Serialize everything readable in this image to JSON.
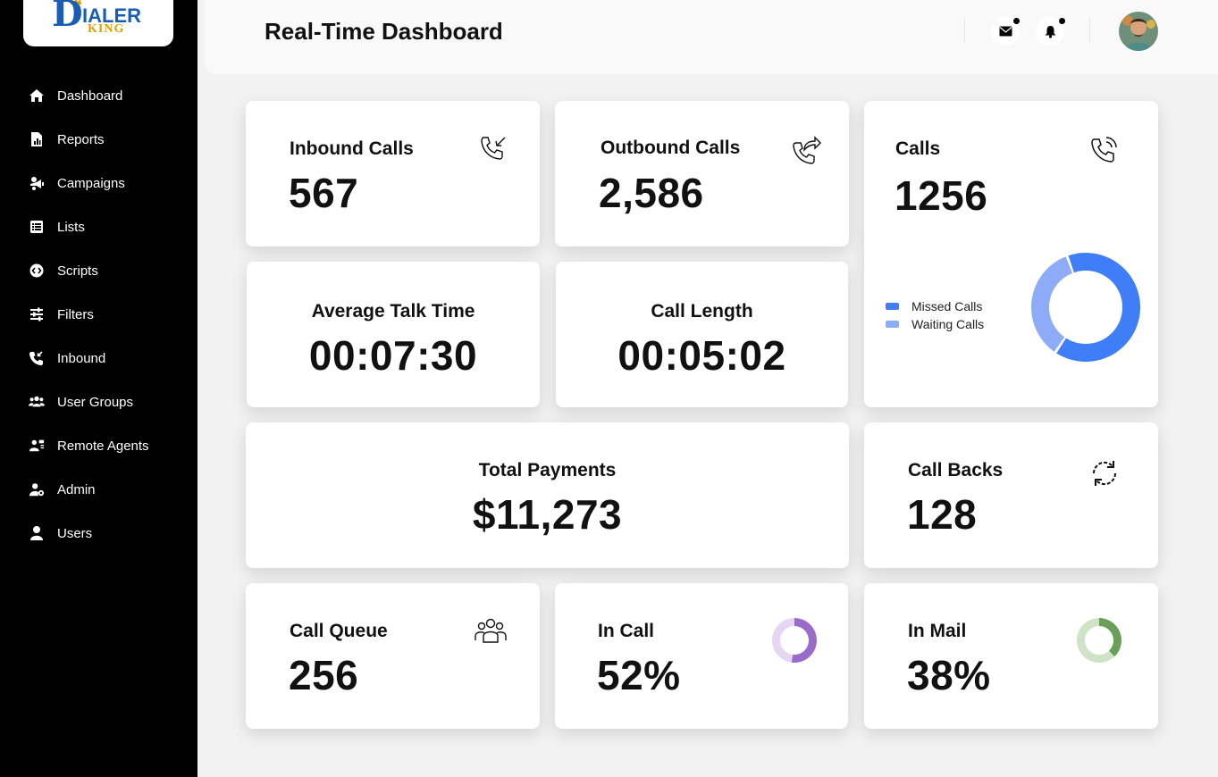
{
  "brand": {
    "logo_text_top": "IALER",
    "logo_text_bottom": "KING",
    "logo_letter": "D"
  },
  "sidebar": {
    "items": [
      {
        "label": "Dashboard",
        "icon": "home-icon"
      },
      {
        "label": "Reports",
        "icon": "report-icon"
      },
      {
        "label": "Campaigns",
        "icon": "megaphone-icon"
      },
      {
        "label": "Lists",
        "icon": "list-icon"
      },
      {
        "label": "Scripts",
        "icon": "code-icon"
      },
      {
        "label": "Filters",
        "icon": "sliders-icon"
      },
      {
        "label": "Inbound",
        "icon": "phone-incoming-icon"
      },
      {
        "label": "User Groups",
        "icon": "users-icon"
      },
      {
        "label": "Remote Agents",
        "icon": "remote-agent-icon"
      },
      {
        "label": "Admin",
        "icon": "user-gear-icon"
      },
      {
        "label": "Users",
        "icon": "user-icon"
      }
    ]
  },
  "header": {
    "title": "Real-Time Dashboard"
  },
  "cards": {
    "inbound": {
      "title": "Inbound Calls",
      "value": "567"
    },
    "outbound": {
      "title": "Outbound Calls",
      "value": "2,586"
    },
    "calls": {
      "title": "Calls",
      "value": "1256",
      "legend": [
        {
          "label": "Missed Calls",
          "color": "#3f7ef7",
          "fraction": 0.65
        },
        {
          "label": "Waiting Calls",
          "color": "#8eabf7",
          "fraction": 0.35
        }
      ]
    },
    "avg_talk": {
      "title": "Average Talk Time",
      "value": "00:07:30"
    },
    "call_length": {
      "title": "Call Length",
      "value": "00:05:02"
    },
    "payments": {
      "title": "Total Payments",
      "value": "$11,273"
    },
    "callbacks": {
      "title": "Call Backs",
      "value": "128"
    },
    "queue": {
      "title": "Call Queue",
      "value": "256"
    },
    "in_call": {
      "title": "In Call",
      "value": "52%",
      "fraction": 0.52,
      "color": "#9b6bc9",
      "track": "#e6d6f2"
    },
    "in_mail": {
      "title": "In Mail",
      "value": "38%",
      "fraction": 0.38,
      "color": "#6a9f5a",
      "track": "#cfe4c6"
    }
  }
}
